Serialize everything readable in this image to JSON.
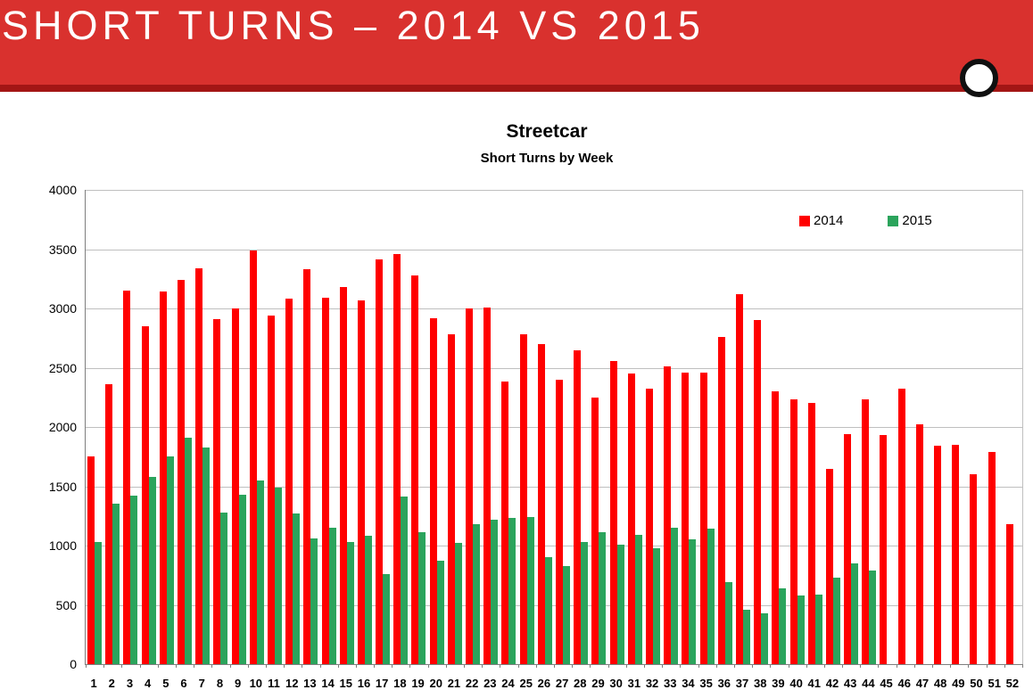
{
  "header": {
    "title": "SHORT TURNS – 2014 VS 2015"
  },
  "theme": {
    "banner_red": "#d9312e",
    "banner_stripe": "#a31615",
    "bar_2014": "#ff0000",
    "bar_2015": "#2ba45c",
    "gridline": "#bfbfbf",
    "axis": "#7f7f7f"
  },
  "icons": {
    "corner_circle": "circle-icon"
  },
  "chart_data": {
    "type": "bar",
    "title": "Streetcar",
    "subtitle": "Short Turns by Week",
    "xlabel": "",
    "ylabel": "",
    "ylim": [
      0,
      4000
    ],
    "ytick_step": 500,
    "grid": true,
    "legend_position": "top-right",
    "categories": [
      1,
      2,
      3,
      4,
      5,
      6,
      7,
      8,
      9,
      10,
      11,
      12,
      13,
      14,
      15,
      16,
      17,
      18,
      19,
      20,
      21,
      22,
      23,
      24,
      25,
      26,
      27,
      28,
      29,
      30,
      31,
      32,
      33,
      34,
      35,
      36,
      37,
      38,
      39,
      40,
      41,
      42,
      43,
      44,
      45,
      46,
      47,
      48,
      49,
      50,
      51,
      52
    ],
    "series": [
      {
        "name": "2014",
        "color": "#ff0000",
        "values": [
          1750,
          2360,
          3150,
          2850,
          3140,
          3240,
          3340,
          2910,
          3000,
          3490,
          2940,
          3080,
          3330,
          3090,
          3180,
          3070,
          3410,
          3460,
          3280,
          2920,
          2780,
          3000,
          3010,
          2380,
          2780,
          2700,
          2400,
          2650,
          2250,
          2560,
          2450,
          2320,
          2510,
          2460,
          2460,
          2760,
          3120,
          2900,
          2300,
          2230,
          2200,
          1650,
          1940,
          2230,
          1930,
          2320,
          2020,
          1840,
          1850,
          1600,
          1790,
          1180
        ]
      },
      {
        "name": "2015",
        "color": "#2ba45c",
        "values": [
          1030,
          1350,
          1420,
          1580,
          1750,
          1910,
          1830,
          1280,
          1430,
          1550,
          1490,
          1270,
          1060,
          1150,
          1030,
          1080,
          760,
          1410,
          1110,
          870,
          1020,
          1180,
          1220,
          1230,
          1240,
          900,
          830,
          1030,
          1110,
          1010,
          1090,
          980,
          1150,
          1050,
          1140,
          690,
          460,
          430,
          640,
          580,
          590,
          730,
          850,
          790
        ]
      }
    ]
  }
}
